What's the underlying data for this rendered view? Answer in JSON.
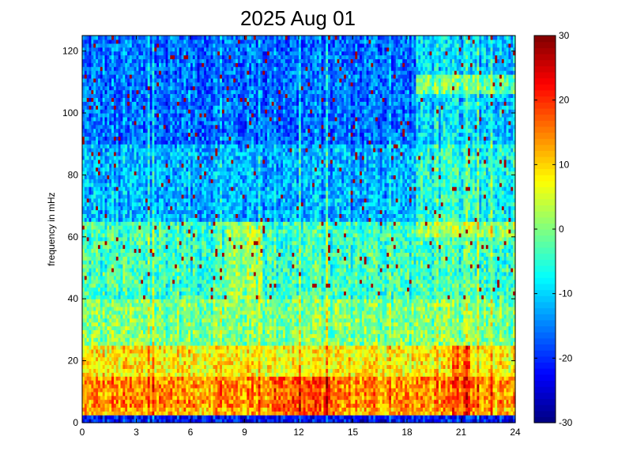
{
  "chart_data": {
    "type": "heatmap",
    "title": "2025 Aug 01",
    "xlabel": "",
    "ylabel": "frequency in mHz",
    "xlim": [
      0,
      24
    ],
    "ylim": [
      0,
      125
    ],
    "x_ticks": [
      0,
      3,
      6,
      9,
      12,
      15,
      18,
      21,
      24
    ],
    "y_ticks": [
      0,
      20,
      40,
      60,
      80,
      100,
      120
    ],
    "x_tick_labels": [
      "0",
      "3",
      "6",
      "9",
      "12",
      "15",
      "18",
      "21",
      "24"
    ],
    "y_tick_labels": [
      "0",
      "20",
      "40",
      "60",
      "80",
      "100",
      "120"
    ],
    "colorbar": {
      "colormap": "jet",
      "range": [
        -30,
        30
      ],
      "ticks": [
        -30,
        -20,
        -10,
        0,
        10,
        20,
        30
      ],
      "tick_labels": [
        "-30",
        "-20",
        "-10",
        "0",
        "10",
        "20",
        "30"
      ]
    },
    "grid": false,
    "cell_model": {
      "time_step_hours": 0.125,
      "freq_step_mhz": 1.25,
      "value_by_frequency_band": [
        {
          "freq_range": [
            0,
            2
          ],
          "value": -22
        },
        {
          "freq_range": [
            2,
            5
          ],
          "value": 12
        },
        {
          "freq_range": [
            5,
            15
          ],
          "value": 14
        },
        {
          "freq_range": [
            15,
            25
          ],
          "value": 8
        },
        {
          "freq_range": [
            25,
            40
          ],
          "value": 0
        },
        {
          "freq_range": [
            40,
            65
          ],
          "value": -4
        },
        {
          "freq_range": [
            65,
            90
          ],
          "value": -12
        },
        {
          "freq_range": [
            90,
            125
          ],
          "value": -16
        }
      ],
      "notable_features": [
        {
          "label": "higher background after 18.5 h above 60 mHz",
          "time_range": [
            18.5,
            24
          ],
          "freq_range": [
            60,
            125
          ],
          "value_shift": 6
        },
        {
          "label": "narrow line near 110 mHz after 18.5 h",
          "time_range": [
            18.5,
            24
          ],
          "freq_range": [
            106,
            112
          ],
          "value": 3
        },
        {
          "label": "warm patch 8 to 10 h",
          "time_range": [
            8,
            10
          ],
          "freq_range": [
            40,
            65
          ],
          "value": 4
        },
        {
          "label": "strong low-frequency burst near 21 h",
          "time_range": [
            20.5,
            21.5
          ],
          "freq_range": [
            3,
            25
          ],
          "value": 20
        },
        {
          "label": "strong low-frequency activity 10.5 to 14 h",
          "time_range": [
            10.5,
            14
          ],
          "freq_range": [
            3,
            15
          ],
          "value": 20
        }
      ]
    }
  }
}
